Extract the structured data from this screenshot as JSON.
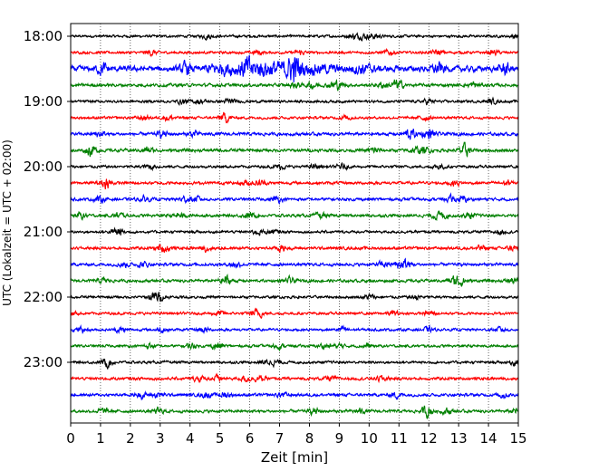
{
  "chart_data": {
    "type": "line",
    "title": "",
    "xlabel": "Zeit  [min]",
    "ylabel": "UTC (Lokalzeit = UTC + 02:00)",
    "xlim": [
      0,
      15
    ],
    "x_ticks": [
      0,
      1,
      2,
      3,
      4,
      5,
      6,
      7,
      8,
      9,
      10,
      11,
      12,
      13,
      14,
      15
    ],
    "y_tick_labels": [
      "18:00",
      "19:00",
      "20:00",
      "21:00",
      "22:00",
      "23:00"
    ],
    "grid": "vertical-dotted",
    "trace_interval_min": 15,
    "trace_colors": [
      "#000000",
      "#ff0000",
      "#0000ff",
      "#008000"
    ],
    "traces": [
      {
        "start": "18:00",
        "amplitude": 0.25
      },
      {
        "start": "18:15",
        "amplitude": 0.25
      },
      {
        "start": "18:30",
        "amplitude": 0.55,
        "event": {
          "from_min": 4.5,
          "to_min": 11.5,
          "peak_min": 6.5,
          "peak_amplitude": 0.6
        }
      },
      {
        "start": "18:45",
        "amplitude": 0.3
      },
      {
        "start": "19:00",
        "amplitude": 0.25
      },
      {
        "start": "19:15",
        "amplitude": 0.25
      },
      {
        "start": "19:30",
        "amplitude": 0.3
      },
      {
        "start": "19:45",
        "amplitude": 0.3
      },
      {
        "start": "20:00",
        "amplitude": 0.25
      },
      {
        "start": "20:15",
        "amplitude": 0.28
      },
      {
        "start": "20:30",
        "amplitude": 0.28
      },
      {
        "start": "20:45",
        "amplitude": 0.28
      },
      {
        "start": "21:00",
        "amplitude": 0.25
      },
      {
        "start": "21:15",
        "amplitude": 0.28
      },
      {
        "start": "21:30",
        "amplitude": 0.28
      },
      {
        "start": "21:45",
        "amplitude": 0.28
      },
      {
        "start": "22:00",
        "amplitude": 0.25
      },
      {
        "start": "22:15",
        "amplitude": 0.25
      },
      {
        "start": "22:30",
        "amplitude": 0.25
      },
      {
        "start": "22:45",
        "amplitude": 0.25
      },
      {
        "start": "23:00",
        "amplitude": 0.25
      },
      {
        "start": "23:15",
        "amplitude": 0.28
      },
      {
        "start": "23:30",
        "amplitude": 0.28
      },
      {
        "start": "23:45",
        "amplitude": 0.28
      }
    ]
  }
}
